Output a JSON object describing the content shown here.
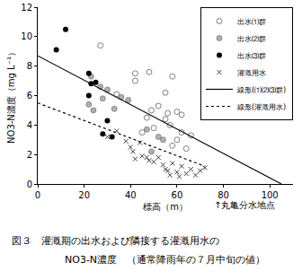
{
  "chart_data": {
    "type": "scatter",
    "x_label": "標高（m）",
    "y_label": "NO3-N濃度（mg L⁻¹）",
    "xlim": [
      0,
      110
    ],
    "xticks": [
      0,
      20,
      40,
      60,
      80,
      100
    ],
    "ylim": [
      0,
      12
    ],
    "yticks": [
      0,
      2,
      4,
      6,
      8,
      10,
      12
    ],
    "grid": false,
    "legend": "top right",
    "annotations": [
      {
        "x": 75,
        "text": "↑丸亀分水地点"
      }
    ],
    "caption": [
      "図３　灌漑期の出水および隣接する灌漑用水の",
      "NO3-N濃度　（通常降雨年の７月中旬の値）"
    ],
    "series": [
      {
        "name": "出水⑴群",
        "type": "scatter",
        "marker": "open_circle",
        "color": "#808080",
        "x": [
          27,
          34,
          42,
          42,
          48,
          58,
          55,
          52,
          49,
          55,
          56,
          57,
          60,
          62,
          47,
          50,
          60,
          64,
          66,
          58,
          45,
          62
        ],
        "values": [
          9.4,
          6.1,
          7.5,
          7.0,
          7.6,
          7.3,
          6.2,
          5.3,
          5.0,
          4.4,
          4.8,
          4.0,
          4.9,
          4.7,
          4.5,
          3.8,
          3.0,
          2.4,
          3.3,
          2.6,
          3.5,
          3.5
        ]
      },
      {
        "name": "出水⑵群",
        "type": "scatter",
        "marker": "circle",
        "color": "#b0b0b0",
        "x": [
          23,
          27,
          28,
          30,
          33,
          36,
          39,
          22,
          24,
          47,
          54,
          49,
          52
        ],
        "values": [
          7.3,
          6.6,
          5.8,
          6.4,
          5.1,
          5.9,
          5.7,
          5.4,
          5.0,
          3.7,
          3.0,
          2.2,
          3.2
        ]
      },
      {
        "name": "出水⑶群",
        "type": "scatter",
        "marker": "circle",
        "color": "#000000",
        "x": [
          8,
          12,
          22,
          23,
          25,
          22,
          30,
          32,
          28
        ],
        "values": [
          9.1,
          10.5,
          7.5,
          6.8,
          6.9,
          6.0,
          4.3,
          3.2,
          3.4
        ]
      },
      {
        "name": "灌漑用水",
        "type": "scatter",
        "marker": "x",
        "color": "#404040",
        "x": [
          30,
          34,
          38,
          40,
          41,
          44,
          47,
          48,
          50,
          52,
          54,
          55,
          56,
          58,
          60,
          62,
          64,
          66,
          68,
          70,
          72,
          61,
          57,
          45,
          42
        ],
        "values": [
          3.2,
          3.6,
          2.9,
          2.5,
          2.2,
          2.8,
          1.8,
          1.6,
          1.5,
          1.8,
          1.3,
          1.0,
          0.9,
          1.4,
          0.8,
          1.2,
          0.7,
          1.0,
          0.6,
          0.9,
          1.1,
          0.5,
          0.6,
          1.9,
          1.7
        ]
      },
      {
        "name": "線形(⑴⑵⑶群)",
        "type": "line",
        "line_style": "solid",
        "color": "#000000",
        "x": [
          0,
          105
        ],
        "values": [
          8.7,
          0
        ]
      },
      {
        "name": "線形(灌漑用水)",
        "type": "line",
        "line_style": "dot",
        "color": "#000000",
        "x": [
          0,
          72
        ],
        "values": [
          5.5,
          1.2
        ]
      }
    ]
  }
}
